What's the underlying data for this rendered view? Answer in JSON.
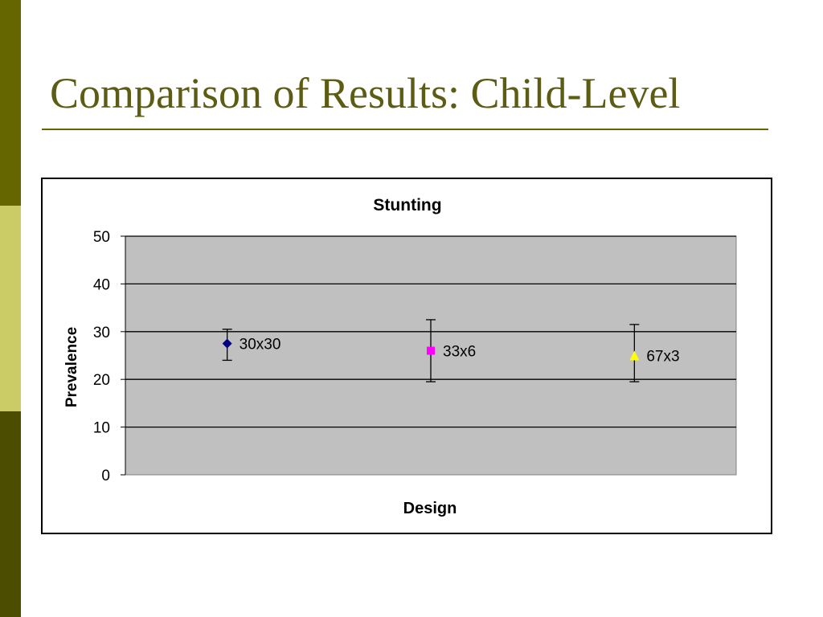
{
  "slide": {
    "title": "Comparison of Results: Child-Level",
    "colors": {
      "accent_dark": "#666600",
      "accent_light": "#cccc66",
      "accent_bottom": "#4d4d00",
      "title_text": "#5c5c14"
    }
  },
  "chart_data": {
    "type": "scatter",
    "title": "Stunting",
    "xlabel": "Design",
    "ylabel": "Prevalence",
    "ylim": [
      0,
      50
    ],
    "yticks": [
      0,
      10,
      20,
      30,
      40,
      50
    ],
    "grid": true,
    "legend": "none",
    "plot_background": "#c0c0c0",
    "categories": [
      "30x30",
      "33x6",
      "67x3"
    ],
    "points": [
      {
        "label": "30x30",
        "value": 27.5,
        "lower": 24,
        "upper": 30.5,
        "marker": "diamond",
        "color": "#000080"
      },
      {
        "label": "33x6",
        "value": 26,
        "lower": 19.5,
        "upper": 32.5,
        "marker": "square",
        "color": "#ff00ff"
      },
      {
        "label": "67x3",
        "value": 25,
        "lower": 19.5,
        "upper": 31.5,
        "marker": "triangle",
        "color": "#ffff00"
      }
    ]
  }
}
